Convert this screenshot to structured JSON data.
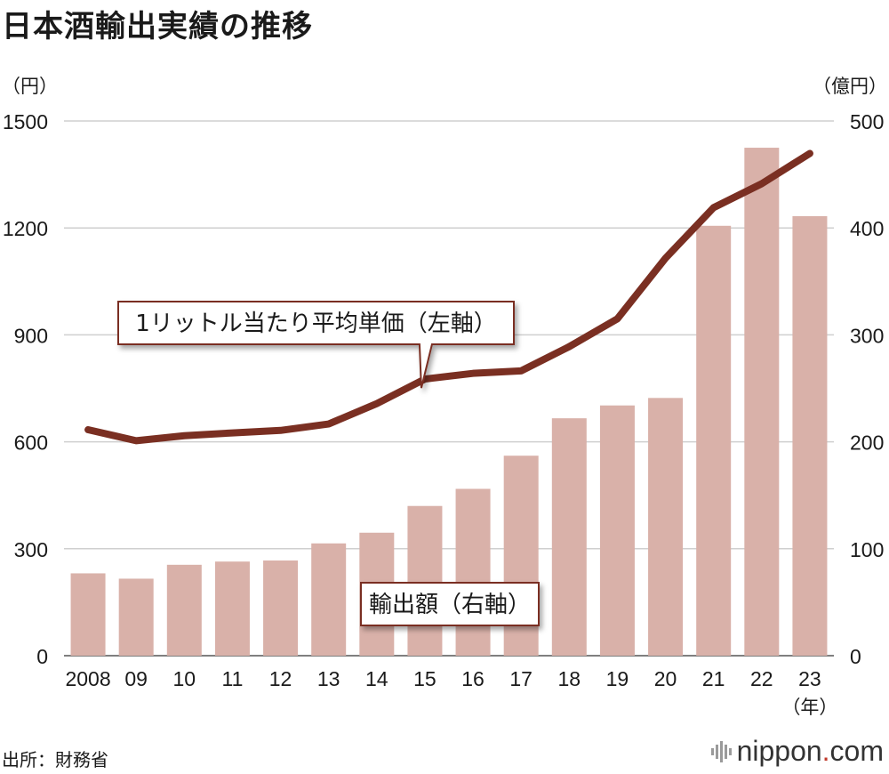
{
  "title": "日本酒輸出実績の推移",
  "source": "出所：財務省",
  "logo": {
    "brand": "nippon",
    "dot": ".",
    "tld": "com"
  },
  "colors": {
    "bar": "#d9b1a9",
    "line": "#7a2f22",
    "grid": "#cfcfcf",
    "callout_border": "#7a2f22"
  },
  "chart_data": {
    "type": "bar+line",
    "categories": [
      "2008",
      "09",
      "10",
      "11",
      "12",
      "13",
      "14",
      "15",
      "16",
      "17",
      "18",
      "19",
      "20",
      "21",
      "22",
      "23"
    ],
    "left_axis": {
      "unit": "（円）",
      "min": 0,
      "max": 1500,
      "ticks": [
        0,
        300,
        600,
        900,
        1200,
        1500
      ]
    },
    "right_axis": {
      "unit": "（億円）",
      "min": 0,
      "max": 500,
      "ticks": [
        0,
        100,
        200,
        300,
        400,
        500
      ]
    },
    "x_unit": "（年）",
    "series": [
      {
        "name": "輸出額（右軸）",
        "type": "bar",
        "axis": "right",
        "values": [
          77,
          72,
          85,
          88,
          89,
          105,
          115,
          140,
          156,
          187,
          222,
          234,
          241,
          402,
          475,
          411
        ]
      },
      {
        "name": "1リットル当たり平均単価（左軸）",
        "type": "line",
        "axis": "left",
        "values": [
          634,
          603,
          617,
          625,
          632,
          650,
          707,
          776,
          792,
          799,
          867,
          945,
          1115,
          1257,
          1324,
          1409
        ]
      }
    ],
    "grid": true
  }
}
